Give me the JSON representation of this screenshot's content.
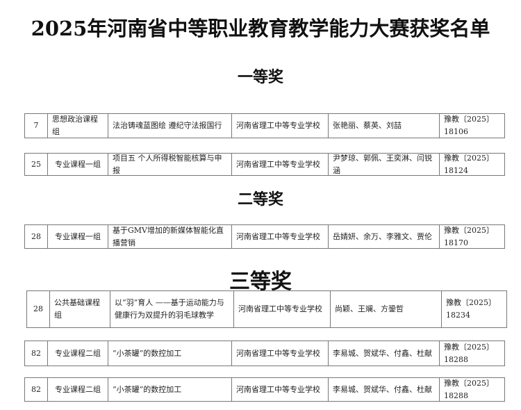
{
  "title": "2025年河南省中等职业教育教学能力大赛获奖名单",
  "sections": {
    "first": "一等奖",
    "second": "二等奖",
    "third": "三等奖"
  },
  "rows": [
    {
      "no": "7",
      "group": "思想政治课程组",
      "topic": "法治铸魂蓝图绘 遵纪守法报国行",
      "school": "河南省理工中等专业学校",
      "members": "张艳丽、蔡英、刘喆",
      "doc": "豫教〔2025〕18106"
    },
    {
      "no": "25",
      "group": "专业课程一组",
      "topic": "项目五 个人所得税智能核算与申报",
      "school": "河南省理工中等专业学校",
      "members": "尹梦琼、郭佩、王奕淋、闫锐涵",
      "doc": "豫教〔2025〕18124"
    },
    {
      "no": "28",
      "group": "专业课程一组",
      "topic": "基于GMV增加的新媒体智能化直播营销",
      "school": "河南省理工中等专业学校",
      "members": "岳婧妍、余万、李雅文、贾伦",
      "doc": "豫教〔2025〕18170"
    },
    {
      "no": "28",
      "group": "公共基础课程组",
      "topic": "以“羽”育人 ——基于运动能力与健康行为双提升的羽毛球教学",
      "school": "河南省理工中等专业学校",
      "members": "尚颖、王斓、方銎哲",
      "doc": "豫教〔2025〕18234"
    },
    {
      "no": "82",
      "group": "专业课程二组",
      "topic": "“小茶罐”的数控加工",
      "school": "河南省理工中等专业学校",
      "members": "李易城、贺斌华、付鑫、杜献",
      "doc": "豫教〔2025〕18288"
    },
    {
      "no": "82",
      "group": "专业课程二组",
      "topic": "“小茶罐”的数控加工",
      "school": "河南省理工中等专业学校",
      "members": "李易城、贺斌华、付鑫、杜献",
      "doc": "豫教〔2025〕18288"
    }
  ]
}
